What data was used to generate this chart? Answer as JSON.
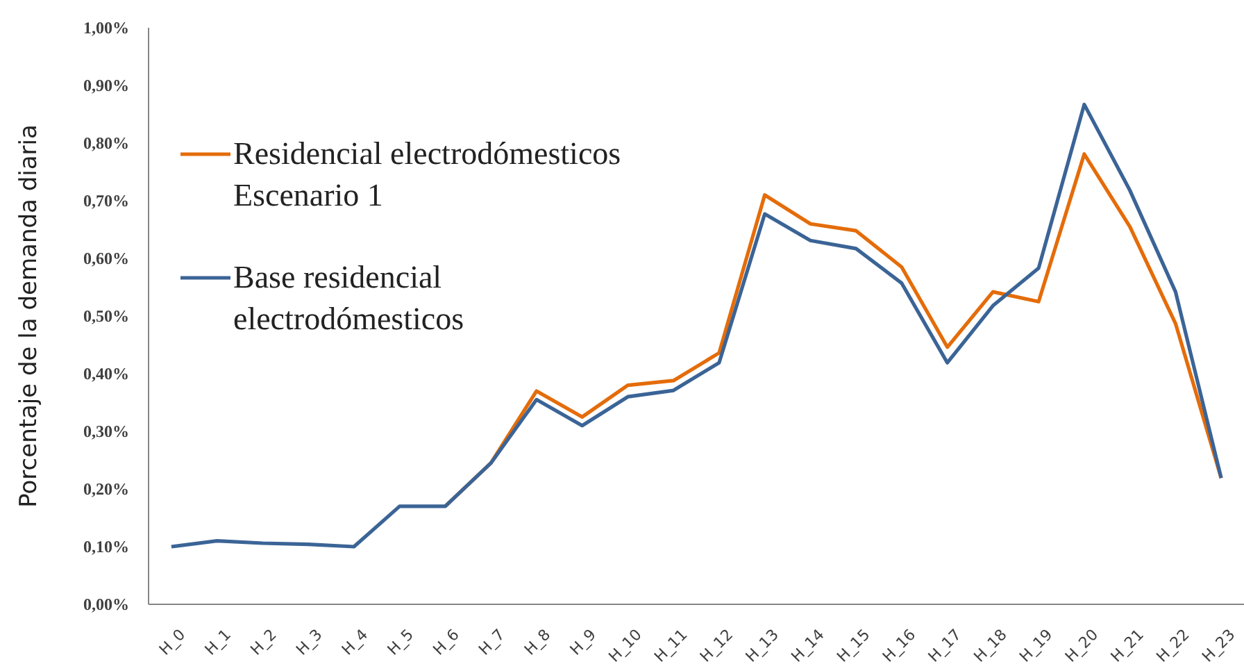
{
  "chart_data": {
    "type": "line",
    "ylabel": "Porcentaje de la demanda diaria",
    "categories": [
      "H_0",
      "H_1",
      "H_2",
      "H_3",
      "H_4",
      "H_5",
      "H_6",
      "H_7",
      "H_8",
      "H_9",
      "H_10",
      "H_11",
      "H_12",
      "H_13",
      "H_14",
      "H_15",
      "H_16",
      "H_17",
      "H_18",
      "H_19",
      "H_20",
      "H_21",
      "H_22",
      "H_23"
    ],
    "series": [
      {
        "name": "Residencial electrodómesticos Escenario 1",
        "color": "#e46c0a",
        "values": [
          null,
          null,
          null,
          null,
          null,
          null,
          0.17,
          0.245,
          0.37,
          0.325,
          0.38,
          0.388,
          0.436,
          0.71,
          0.66,
          0.648,
          0.585,
          0.446,
          0.542,
          0.525,
          0.781,
          0.655,
          0.487,
          0.219
        ]
      },
      {
        "name": "Base residencial electrodómesticos",
        "color": "#3b6496",
        "values": [
          0.1,
          0.11,
          0.106,
          0.104,
          0.1,
          0.17,
          0.17,
          0.245,
          0.355,
          0.31,
          0.36,
          0.371,
          0.419,
          0.677,
          0.631,
          0.617,
          0.557,
          0.419,
          0.518,
          0.583,
          0.867,
          0.718,
          0.542,
          0.219
        ]
      }
    ],
    "ylim": [
      0,
      1
    ],
    "yticks": [
      {
        "value": 0,
        "label": "0,00%"
      },
      {
        "value": 0.1,
        "label": "0,10%"
      },
      {
        "value": 0.2,
        "label": "0,20%"
      },
      {
        "value": 0.3,
        "label": "0,30%"
      },
      {
        "value": 0.4,
        "label": "0,40%"
      },
      {
        "value": 0.5,
        "label": "0,50%"
      },
      {
        "value": 0.6,
        "label": "0,60%"
      },
      {
        "value": 0.7,
        "label": "0,70%"
      },
      {
        "value": 0.8,
        "label": "0,80%"
      },
      {
        "value": 0.9,
        "label": "0,90%"
      },
      {
        "value": 1,
        "label": "1,00%"
      }
    ],
    "grid": false,
    "legend": "top left",
    "marker": "none",
    "line_style": "solid"
  }
}
